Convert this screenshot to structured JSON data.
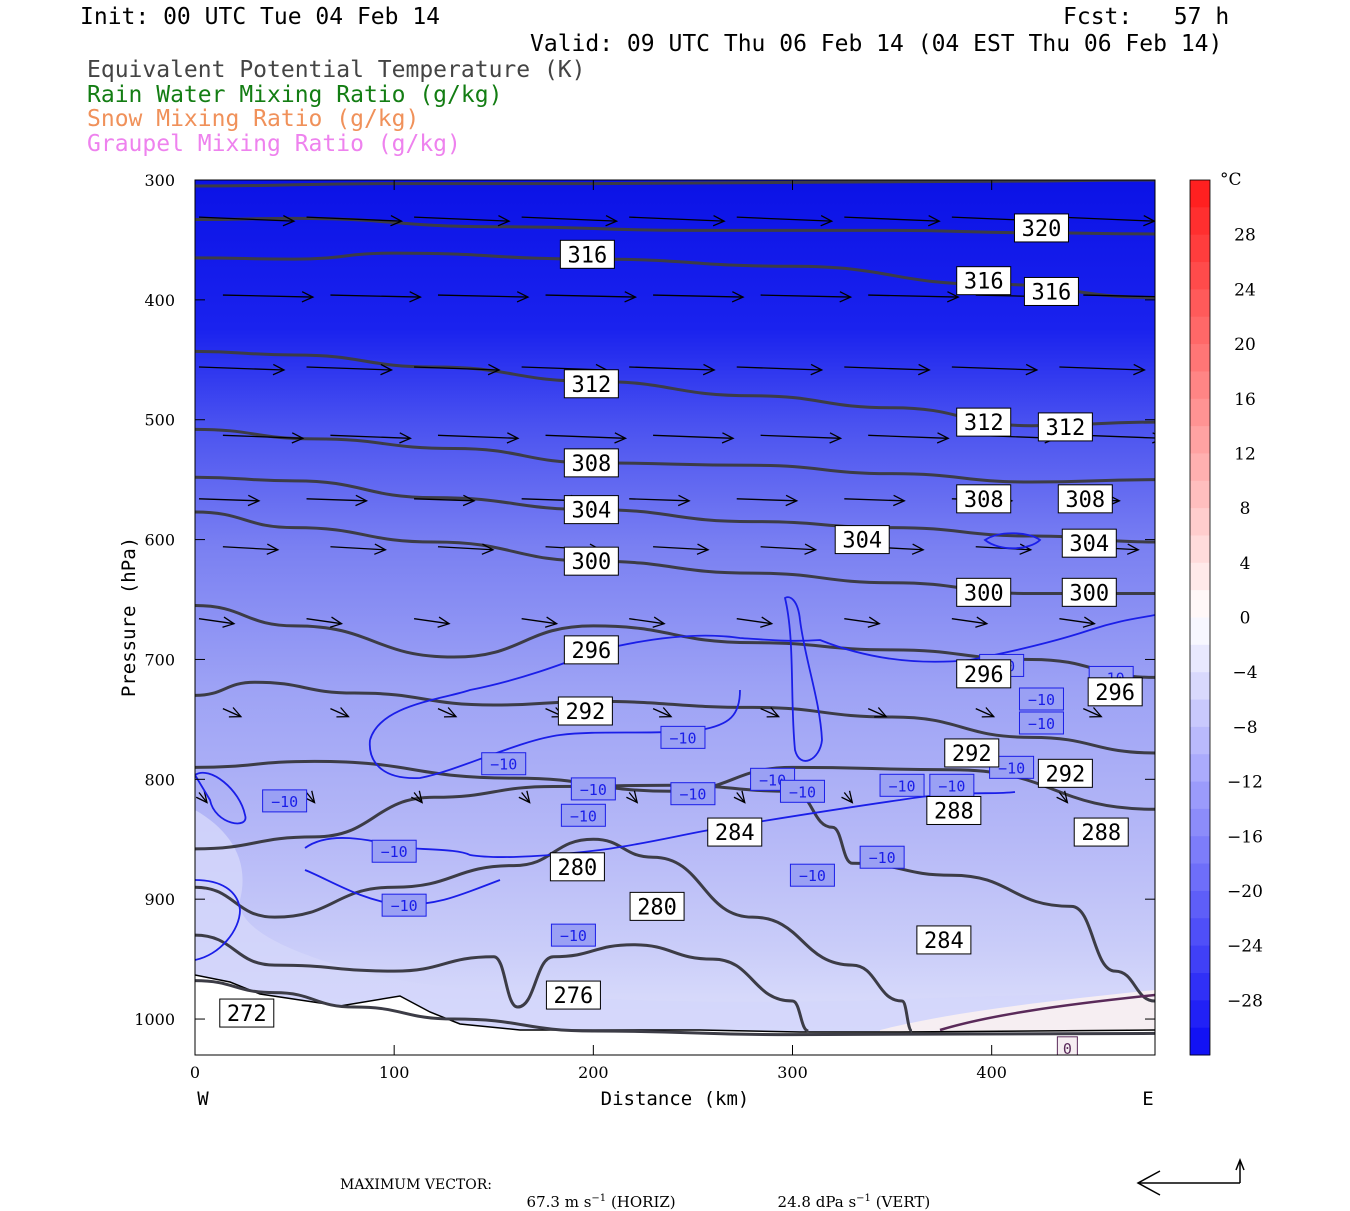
{
  "header": {
    "init": "Init: 00 UTC Tue 04 Feb 14",
    "fcst": "Fcst:   57 h",
    "valid": "Valid: 09 UTC Thu 06 Feb 14 (04 EST Thu 06 Feb 14)"
  },
  "legend": {
    "items": [
      {
        "label": "Equivalent Potential Temperature (K)",
        "color": "#444444"
      },
      {
        "label": "Rain Water Mixing Ratio (g/kg)",
        "color": "#137d13"
      },
      {
        "label": "Snow Mixing Ratio (g/kg)",
        "color": "#f0915a"
      },
      {
        "label": "Graupel Mixing Ratio (g/kg)",
        "color": "#ee82ee"
      }
    ]
  },
  "chart_data": {
    "type": "cross-section",
    "xlabel": "Distance (km)",
    "ylabel": "Pressure (hPa)",
    "xlim": [
      0,
      482
    ],
    "ylim": [
      1030,
      300
    ],
    "x_ticks": [
      0,
      100,
      200,
      300,
      400
    ],
    "y_ticks": [
      300,
      400,
      500,
      600,
      700,
      800,
      900,
      1000
    ],
    "left_end_label": "W",
    "right_end_label": "E",
    "colorbar": {
      "unit": "°C",
      "tick_labels": [
        "28",
        "24",
        "20",
        "16",
        "12",
        "8",
        "4",
        "0",
        "−4",
        "−8",
        "−12",
        "−16",
        "−20",
        "−24",
        "−28"
      ],
      "tick_values": [
        28,
        24,
        20,
        16,
        12,
        8,
        4,
        0,
        -4,
        -8,
        -12,
        -16,
        -20,
        -24,
        -28
      ],
      "range": [
        -32,
        32
      ]
    },
    "theta_e_contours": [
      {
        "value": 320,
        "pts": [
          [
            0,
            305
          ],
          [
            100,
            303
          ],
          [
            200,
            303
          ],
          [
            300,
            302
          ],
          [
            400,
            301
          ],
          [
            482,
            300
          ]
        ]
      },
      {
        "value": 316,
        "pts": [
          [
            0,
            333
          ],
          [
            50,
            332
          ],
          [
            150,
            339
          ],
          [
            250,
            342
          ],
          [
            350,
            342
          ],
          [
            420,
            344
          ],
          [
            482,
            345
          ]
        ]
      },
      {
        "value": 316,
        "pts": [
          [
            0,
            365
          ],
          [
            50,
            366
          ],
          [
            100,
            361
          ],
          [
            200,
            366
          ],
          [
            300,
            372
          ],
          [
            400,
            387
          ],
          [
            482,
            398
          ]
        ]
      },
      {
        "value": 312,
        "pts": [
          [
            0,
            443
          ],
          [
            50,
            446
          ],
          [
            120,
            456
          ],
          [
            200,
            468
          ],
          [
            280,
            480
          ],
          [
            350,
            490
          ],
          [
            420,
            505
          ],
          [
            482,
            502
          ]
        ]
      },
      {
        "value": 308,
        "pts": [
          [
            0,
            508
          ],
          [
            60,
            516
          ],
          [
            130,
            524
          ],
          [
            200,
            536
          ],
          [
            280,
            538
          ],
          [
            350,
            545
          ],
          [
            420,
            552
          ],
          [
            482,
            550
          ]
        ]
      },
      {
        "value": 304,
        "pts": [
          [
            0,
            548
          ],
          [
            50,
            551
          ],
          [
            120,
            565
          ],
          [
            200,
            575
          ],
          [
            280,
            585
          ],
          [
            350,
            590
          ],
          [
            420,
            597
          ],
          [
            482,
            602
          ]
        ]
      },
      {
        "value": 300,
        "pts": [
          [
            0,
            577
          ],
          [
            50,
            590
          ],
          [
            120,
            602
          ],
          [
            200,
            618
          ],
          [
            280,
            628
          ],
          [
            350,
            636
          ],
          [
            420,
            645
          ],
          [
            482,
            645
          ]
        ]
      },
      {
        "value": 296,
        "pts": [
          [
            0,
            655
          ],
          [
            50,
            672
          ],
          [
            130,
            698
          ],
          [
            200,
            672
          ],
          [
            280,
            686
          ],
          [
            350,
            692
          ],
          [
            420,
            700
          ],
          [
            482,
            715
          ]
        ]
      },
      {
        "value": 292,
        "pts": [
          [
            0,
            730
          ],
          [
            30,
            719
          ],
          [
            80,
            728
          ],
          [
            150,
            738
          ],
          [
            200,
            735
          ],
          [
            280,
            740
          ],
          [
            350,
            748
          ],
          [
            420,
            765
          ],
          [
            482,
            778
          ]
        ]
      },
      {
        "value": 288,
        "pts": [
          [
            0,
            790
          ],
          [
            60,
            785
          ],
          [
            160,
            799
          ],
          [
            240,
            810
          ],
          [
            300,
            790
          ],
          [
            380,
            792
          ],
          [
            482,
            825
          ]
        ]
      },
      {
        "value": 284,
        "pts": [
          [
            0,
            858
          ],
          [
            60,
            848
          ],
          [
            120,
            815
          ],
          [
            180,
            806
          ],
          [
            240,
            805
          ],
          [
            300,
            810
          ],
          [
            320,
            840
          ],
          [
            330,
            870
          ],
          [
            380,
            880
          ],
          [
            440,
            906
          ],
          [
            462,
            960
          ],
          [
            482,
            985
          ]
        ]
      },
      {
        "value": 280,
        "pts": [
          [
            0,
            890
          ],
          [
            40,
            915
          ],
          [
            100,
            890
          ],
          [
            160,
            872
          ],
          [
            200,
            850
          ],
          [
            230,
            865
          ],
          [
            280,
            915
          ],
          [
            330,
            955
          ],
          [
            355,
            985
          ],
          [
            360,
            1010
          ]
        ]
      },
      {
        "value": 276,
        "pts": [
          [
            0,
            930
          ],
          [
            40,
            955
          ],
          [
            100,
            960
          ],
          [
            150,
            948
          ],
          [
            162,
            990
          ],
          [
            180,
            948
          ],
          [
            220,
            938
          ],
          [
            260,
            950
          ],
          [
            300,
            985
          ],
          [
            308,
            1010
          ]
        ]
      },
      {
        "value": 272,
        "pts": [
          [
            0,
            968
          ],
          [
            40,
            978
          ],
          [
            80,
            990
          ],
          [
            130,
            1000
          ],
          [
            200,
            1010
          ],
          [
            300,
            1013
          ],
          [
            482,
            1012
          ]
        ]
      }
    ],
    "theta_e_labels": [
      {
        "text": "320",
        "x": 425,
        "p": 340
      },
      {
        "text": "316",
        "x": 197,
        "p": 362
      },
      {
        "text": "316",
        "x": 396,
        "p": 384
      },
      {
        "text": "316",
        "x": 430,
        "p": 393
      },
      {
        "text": "312",
        "x": 199,
        "p": 470
      },
      {
        "text": "312",
        "x": 396,
        "p": 502
      },
      {
        "text": "312",
        "x": 437,
        "p": 506
      },
      {
        "text": "308",
        "x": 199,
        "p": 536
      },
      {
        "text": "308",
        "x": 396,
        "p": 566
      },
      {
        "text": "308",
        "x": 447,
        "p": 566
      },
      {
        "text": "304",
        "x": 199,
        "p": 575
      },
      {
        "text": "304",
        "x": 335,
        "p": 600
      },
      {
        "text": "304",
        "x": 449,
        "p": 603
      },
      {
        "text": "300",
        "x": 199,
        "p": 618
      },
      {
        "text": "300",
        "x": 396,
        "p": 644
      },
      {
        "text": "300",
        "x": 449,
        "p": 644
      },
      {
        "text": "296",
        "x": 199,
        "p": 692
      },
      {
        "text": "296",
        "x": 396,
        "p": 712
      },
      {
        "text": "296",
        "x": 462,
        "p": 727
      },
      {
        "text": "292",
        "x": 196,
        "p": 743
      },
      {
        "text": "292",
        "x": 390,
        "p": 778
      },
      {
        "text": "292",
        "x": 437,
        "p": 795
      },
      {
        "text": "288",
        "x": 381,
        "p": 826
      },
      {
        "text": "288",
        "x": 455,
        "p": 844
      },
      {
        "text": "284",
        "x": 271,
        "p": 844
      },
      {
        "text": "284",
        "x": 376,
        "p": 934
      },
      {
        "text": "280",
        "x": 192,
        "p": 873
      },
      {
        "text": "280",
        "x": 232,
        "p": 906
      },
      {
        "text": "276",
        "x": 190,
        "p": 980
      },
      {
        "text": "272",
        "x": 26,
        "p": 995
      }
    ],
    "temp_minus10_label": "−10",
    "zero_label": "0"
  },
  "footer": {
    "max_vector": "MAXIMUM VECTOR:",
    "horiz_value": "67.3 m s",
    "horiz_exp": "−1",
    "horiz_tag": "(HORIZ)",
    "vert_value": "24.8 dPa s",
    "vert_exp": "−1",
    "vert_tag": "(VERT)"
  }
}
